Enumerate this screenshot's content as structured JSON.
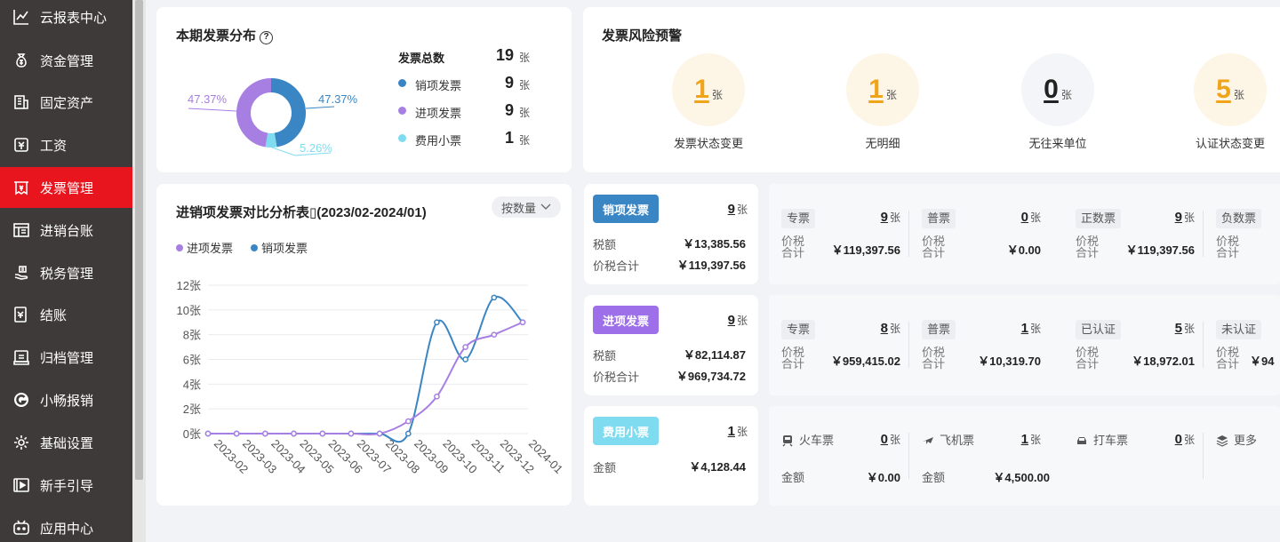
{
  "sidebar": {
    "items": [
      {
        "label": "云报表中心",
        "icon": "chart-line-icon"
      },
      {
        "label": "资金管理",
        "icon": "money-bag-icon"
      },
      {
        "label": "固定资产",
        "icon": "building-icon"
      },
      {
        "label": "工资",
        "icon": "salary-icon"
      },
      {
        "label": "发票管理",
        "icon": "invoice-icon",
        "active": true
      },
      {
        "label": "进销台账",
        "icon": "ledger-icon"
      },
      {
        "label": "税务管理",
        "icon": "tax-hand-icon"
      },
      {
        "label": "结账",
        "icon": "checkout-icon"
      },
      {
        "label": "归档管理",
        "icon": "archive-icon"
      },
      {
        "label": "小畅报销",
        "icon": "reimburse-icon"
      },
      {
        "label": "基础设置",
        "icon": "gear-icon"
      },
      {
        "label": "新手引导",
        "icon": "video-guide-icon"
      },
      {
        "label": "应用中心",
        "icon": "app-center-icon"
      }
    ]
  },
  "distribution": {
    "title": "本期发票分布",
    "help": "?",
    "total_label": "发票总数",
    "total_value": "19",
    "unit": "张",
    "rows": [
      {
        "label": "销项发票",
        "value": "9",
        "color": "#3a86c4"
      },
      {
        "label": "进项发票",
        "value": "9",
        "color": "#a77fe3"
      },
      {
        "label": "费用小票",
        "value": "1",
        "color": "#7fdcf0"
      }
    ],
    "pct_left": "47.37%",
    "pct_right": "47.37%",
    "pct_bottom": "5.26%",
    "donut": [
      {
        "name": "销项发票",
        "value": 9,
        "color": "#3a86c4"
      },
      {
        "name": "费用小票",
        "value": 1,
        "color": "#7fdcf0"
      },
      {
        "name": "进项发票",
        "value": 9,
        "color": "#a77fe3"
      }
    ]
  },
  "risk": {
    "title": "发票风险预警",
    "unit": "张",
    "items": [
      {
        "value": "1",
        "label": "发票状态变更",
        "color": "#f0a41a",
        "bg": "#fdf6e6"
      },
      {
        "value": "1",
        "label": "无明细",
        "color": "#f0a41a",
        "bg": "#fdf6e6"
      },
      {
        "value": "0",
        "label": "无往来单位",
        "color": "#222222",
        "bg": "#f3f5f8"
      },
      {
        "value": "5",
        "label": "认证状态变更",
        "color": "#f0a41a",
        "bg": "#fdf6e6"
      }
    ]
  },
  "analysis": {
    "title": "进销项发票对比分析表▯(2023/02-2024/01)",
    "sort_label": "按数量",
    "legend": [
      {
        "label": "进项发票",
        "color": "#a77fe3"
      },
      {
        "label": "销项发票",
        "color": "#3a86c4"
      }
    ]
  },
  "chart_data": {
    "type": "line",
    "categories": [
      "2023-02",
      "2023-03",
      "2023-04",
      "2023-05",
      "2023-06",
      "2023-07",
      "2023-08",
      "2023-09",
      "2023-10",
      "2023-11",
      "2023-12",
      "2024-01"
    ],
    "y_ticks": [
      "0张",
      "2张",
      "4张",
      "6张",
      "8张",
      "10张",
      "12张"
    ],
    "ylim": [
      0,
      12
    ],
    "grid": true,
    "legend_position": "top-left",
    "series": [
      {
        "name": "进项发票",
        "color": "#a77fe3",
        "values": [
          0,
          0,
          0,
          0,
          0,
          0,
          0,
          1,
          3,
          7,
          8,
          9
        ]
      },
      {
        "name": "销项发票",
        "color": "#3a86c4",
        "values": [
          0,
          0,
          0,
          0,
          0,
          0,
          0,
          0,
          9,
          6,
          11,
          9
        ]
      }
    ]
  },
  "sales_invoice": {
    "badge": "销项发票",
    "badge_color": "#3a86c4",
    "count": "9",
    "unit": "张",
    "rows": [
      {
        "k": "税额",
        "v": "￥13,385.56"
      },
      {
        "k": "价税合计",
        "v": "￥119,397.56"
      }
    ],
    "subs": [
      {
        "tag": "专票",
        "count": "9",
        "label": "价税合计",
        "amount": "￥119,397.56"
      },
      {
        "tag": "普票",
        "count": "0",
        "label": "价税合计",
        "amount": "￥0.00"
      },
      {
        "tag": "正数票",
        "count": "9",
        "label": "价税合计",
        "amount": "￥119,397.56"
      },
      {
        "tag": "负数票",
        "count": "",
        "label": "价税合计",
        "amount": ""
      }
    ]
  },
  "purchase_invoice": {
    "badge": "进项发票",
    "badge_color": "#9d6fe8",
    "count": "9",
    "unit": "张",
    "rows": [
      {
        "k": "税额",
        "v": "￥82,114.87"
      },
      {
        "k": "价税合计",
        "v": "￥969,734.72"
      }
    ],
    "subs": [
      {
        "tag": "专票",
        "count": "8",
        "label": "价税合计",
        "amount": "￥959,415.02"
      },
      {
        "tag": "普票",
        "count": "1",
        "label": "价税合计",
        "amount": "￥10,319.70"
      },
      {
        "tag": "已认证",
        "count": "5",
        "label": "价税合计",
        "amount": "￥18,972.01"
      },
      {
        "tag": "未认证",
        "count": "",
        "label": "价税合计",
        "amount": "￥94"
      }
    ]
  },
  "expense_receipt": {
    "badge": "费用小票",
    "badge_color": "#7fdcf0",
    "count": "1",
    "unit": "张",
    "rows": [
      {
        "k": "金额",
        "v": "￥4,128.44"
      }
    ],
    "subs": [
      {
        "tag": "火车票",
        "icon": "train-icon",
        "count": "0",
        "label": "金额",
        "amount": "￥0.00"
      },
      {
        "tag": "飞机票",
        "icon": "plane-icon",
        "count": "1",
        "label": "金额",
        "amount": "￥4,500.00"
      },
      {
        "tag": "打车票",
        "icon": "car-icon",
        "count": "0",
        "label": "",
        "amount": ""
      },
      {
        "tag": "更多",
        "icon": "layers-icon",
        "count": "",
        "label": "",
        "amount": ""
      }
    ]
  }
}
